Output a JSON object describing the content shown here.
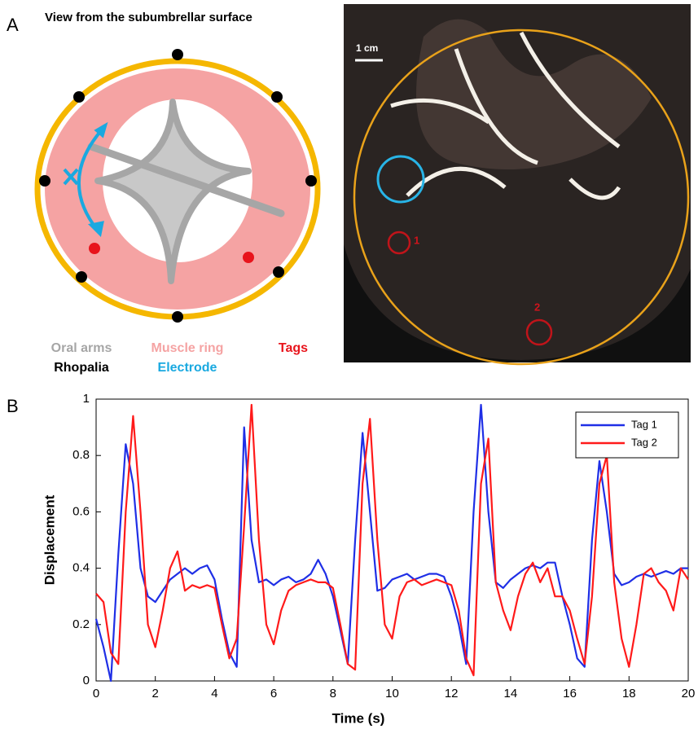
{
  "panel_labels": [
    "A",
    "B"
  ],
  "diagram": {
    "title": "View from the subumbrellar surface",
    "legend": [
      {
        "label": "Oral arms",
        "color": "#a6a6a6"
      },
      {
        "label": "Muscle ring",
        "color": "#f5a3a3"
      },
      {
        "label": "Tags",
        "color": "#e8141c"
      },
      {
        "label": "Rhopalia",
        "color": "#000000"
      },
      {
        "label": "Electrode",
        "color": "#1aa9e0"
      }
    ]
  },
  "photo": {
    "scale_label": "1 cm",
    "tag_labels": [
      "1",
      "2"
    ]
  },
  "chart_data": {
    "type": "line",
    "xlabel": "Time (s)",
    "ylabel": "Displacement",
    "x": [
      0,
      0.25,
      0.5,
      0.75,
      1,
      1.25,
      1.5,
      1.75,
      2,
      2.25,
      2.5,
      2.75,
      3,
      3.25,
      3.5,
      3.75,
      4,
      4.25,
      4.5,
      4.75,
      5,
      5.25,
      5.5,
      5.75,
      6,
      6.25,
      6.5,
      6.75,
      7,
      7.25,
      7.5,
      7.75,
      8,
      8.25,
      8.5,
      8.75,
      9,
      9.25,
      9.5,
      9.75,
      10,
      10.25,
      10.5,
      10.75,
      11,
      11.25,
      11.5,
      11.75,
      12,
      12.25,
      12.5,
      12.75,
      13,
      13.25,
      13.5,
      13.75,
      14,
      14.25,
      14.5,
      14.75,
      15,
      15.25,
      15.5,
      15.75,
      16,
      16.25,
      16.5,
      16.75,
      17,
      17.25,
      17.5,
      17.75,
      18,
      18.25,
      18.5,
      18.75,
      19,
      19.25,
      19.5,
      19.75,
      20
    ],
    "series": [
      {
        "name": "Tag 1",
        "color": "#1f2fe6",
        "values": [
          0.22,
          0.12,
          0.0,
          0.45,
          0.84,
          0.7,
          0.4,
          0.3,
          0.28,
          0.32,
          0.36,
          0.38,
          0.4,
          0.38,
          0.4,
          0.41,
          0.36,
          0.22,
          0.1,
          0.05,
          0.9,
          0.5,
          0.35,
          0.36,
          0.34,
          0.36,
          0.37,
          0.35,
          0.36,
          0.38,
          0.43,
          0.38,
          0.3,
          0.18,
          0.06,
          0.5,
          0.88,
          0.6,
          0.32,
          0.33,
          0.36,
          0.37,
          0.38,
          0.36,
          0.37,
          0.38,
          0.38,
          0.37,
          0.3,
          0.2,
          0.06,
          0.6,
          0.98,
          0.6,
          0.35,
          0.33,
          0.36,
          0.38,
          0.4,
          0.41,
          0.4,
          0.42,
          0.42,
          0.3,
          0.2,
          0.08,
          0.05,
          0.5,
          0.78,
          0.6,
          0.38,
          0.34,
          0.35,
          0.37,
          0.38,
          0.37,
          0.38,
          0.39,
          0.38,
          0.4,
          0.4
        ]
      },
      {
        "name": "Tag 2",
        "color": "#ff1a1a",
        "values": [
          0.31,
          0.28,
          0.1,
          0.06,
          0.6,
          0.94,
          0.6,
          0.2,
          0.12,
          0.25,
          0.4,
          0.46,
          0.32,
          0.34,
          0.33,
          0.34,
          0.33,
          0.2,
          0.08,
          0.15,
          0.55,
          0.98,
          0.5,
          0.2,
          0.13,
          0.25,
          0.32,
          0.34,
          0.35,
          0.36,
          0.35,
          0.35,
          0.33,
          0.2,
          0.06,
          0.04,
          0.7,
          0.93,
          0.5,
          0.2,
          0.15,
          0.3,
          0.35,
          0.36,
          0.34,
          0.35,
          0.36,
          0.35,
          0.34,
          0.25,
          0.08,
          0.02,
          0.7,
          0.86,
          0.35,
          0.25,
          0.18,
          0.3,
          0.38,
          0.42,
          0.35,
          0.4,
          0.3,
          0.3,
          0.25,
          0.15,
          0.06,
          0.3,
          0.7,
          0.8,
          0.35,
          0.15,
          0.05,
          0.2,
          0.38,
          0.4,
          0.35,
          0.32,
          0.25,
          0.4,
          0.36
        ]
      }
    ],
    "xlim": [
      0,
      20
    ],
    "xticks": [
      0,
      2,
      4,
      6,
      8,
      10,
      12,
      14,
      16,
      18,
      20
    ],
    "ylim": [
      0,
      1
    ],
    "yticks": [
      0,
      0.2,
      0.4,
      0.6,
      0.8,
      1
    ],
    "legend": "upper right"
  }
}
